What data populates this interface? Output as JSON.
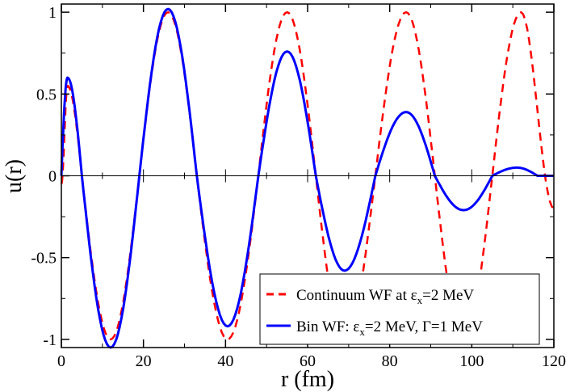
{
  "chart_data": {
    "type": "line",
    "xlabel": "r (fm)",
    "ylabel": "u(r)",
    "xlim": [
      0,
      120
    ],
    "ylim": [
      -1.05,
      1.05
    ],
    "x_ticks": [
      "0",
      "20",
      "40",
      "60",
      "80",
      "100",
      "120"
    ],
    "y_ticks": [
      "-1",
      "-0.5",
      "0",
      "0.5",
      "1"
    ],
    "grid": false,
    "zero_line": true,
    "legend_position": "bottom-right",
    "legend": {
      "continuum_main": "Continuum WF at ε",
      "continuum_sub": "x",
      "continuum_tail": "=2 MeV",
      "bin_main": "Bin WF: ε",
      "bin_sub": "x",
      "bin_tail": "=2 MeV, Γ=1 MeV"
    },
    "series": [
      {
        "name": "Continuum WF at εx=2 MeV",
        "color": "#ff0000",
        "style": "dashed",
        "x": [
          0,
          1.5,
          5,
          12,
          19,
          26,
          33,
          40.5,
          48,
          55,
          62,
          69,
          76.5,
          84,
          91,
          98,
          105,
          112,
          120
        ],
        "y": [
          -0.05,
          0.55,
          0,
          -1.0,
          0,
          1.0,
          0,
          -1.0,
          0,
          1.0,
          0,
          -1.0,
          0,
          1.0,
          0,
          -1.0,
          0,
          1.0,
          -0.2
        ]
      },
      {
        "name": "Bin WF: εx=2 MeV, Γ=1 MeV",
        "color": "#0000ff",
        "style": "solid",
        "x": [
          0,
          1.5,
          5,
          12,
          19,
          26,
          33,
          40.5,
          48,
          55,
          62,
          69,
          76.5,
          84,
          91,
          98,
          105,
          111,
          116,
          120
        ],
        "y": [
          0,
          0.6,
          0,
          -1.05,
          0,
          1.02,
          0,
          -0.92,
          0,
          0.76,
          0,
          -0.58,
          0,
          0.39,
          0,
          -0.21,
          0,
          0.05,
          0,
          0
        ]
      }
    ]
  }
}
